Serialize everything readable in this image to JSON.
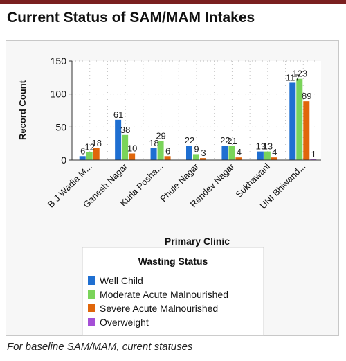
{
  "page": {
    "title": "Current Status of SAM/MAM Intakes",
    "caption": "For baseline SAM/MAM, curent statuses"
  },
  "chart_data": {
    "type": "bar",
    "xlabel": "Primary Clinic",
    "ylabel": "Record Count",
    "ylim": [
      0,
      150
    ],
    "yticks": [
      0,
      50,
      100,
      150
    ],
    "grid": true,
    "legend_title": "Wasting Status",
    "legend_position": "bottom",
    "categories": [
      "B J Wadia M...",
      "Ganesh Nagar",
      "Kurla Posha...",
      "Phule Nagar",
      "Randev Nagar",
      "Sukhawani",
      "UNI Bhiwand..."
    ],
    "series": [
      {
        "name": "Well Child",
        "color": "#1f6fd1",
        "values": [
          6,
          61,
          18,
          22,
          22,
          13,
          117
        ]
      },
      {
        "name": "Moderate Acute Malnourished",
        "color": "#7ad45a",
        "values": [
          12,
          38,
          29,
          9,
          21,
          13,
          123
        ]
      },
      {
        "name": "Severe Acute Malnourished",
        "color": "#e0660b",
        "values": [
          18,
          10,
          6,
          3,
          4,
          4,
          89
        ]
      },
      {
        "name": "Overweight",
        "color": "#a54fd6",
        "values": [
          null,
          null,
          null,
          null,
          null,
          null,
          1
        ]
      }
    ]
  }
}
